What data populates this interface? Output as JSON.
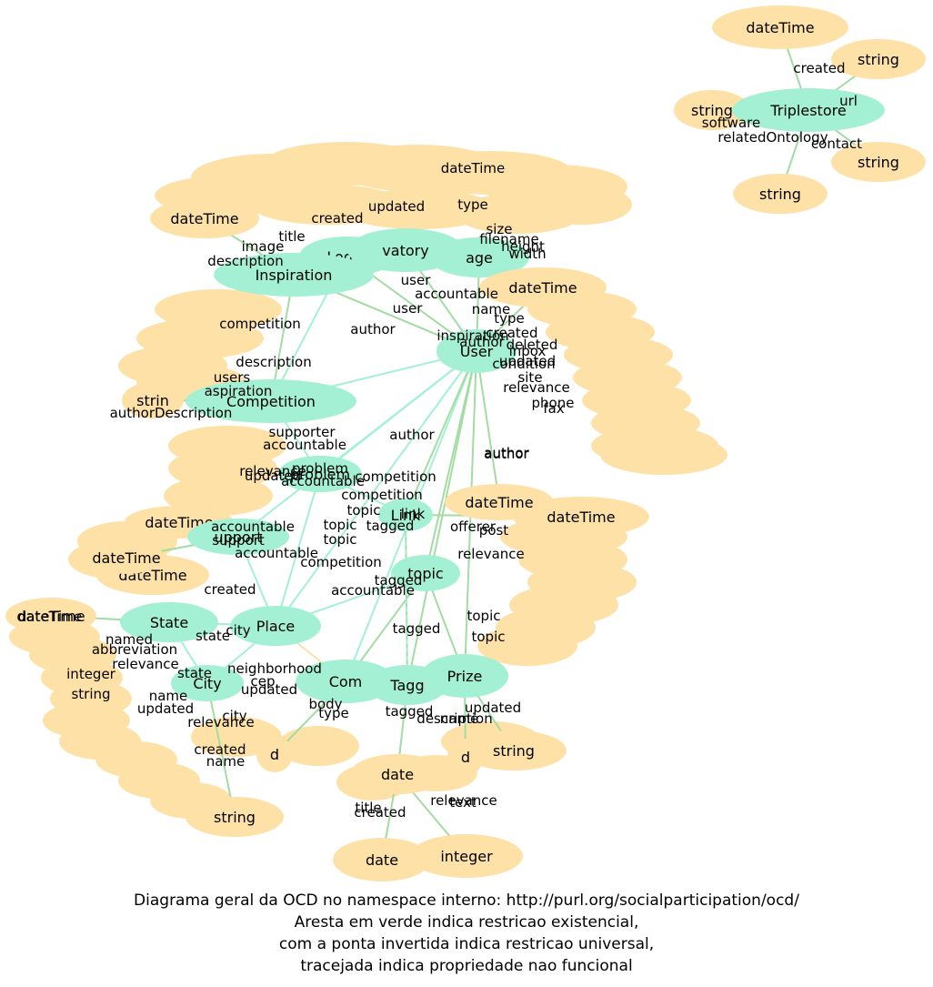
{
  "colors": {
    "class_node": "#a3f0d4",
    "literal_node": "#fde1a7",
    "edge": "#a3dca3",
    "edge_teal": "#a3f0d4",
    "edge_orange": "#fde1a7"
  },
  "diagram": {
    "nodes": [
      {
        "id": "dt_ts",
        "label": "dateTime",
        "kind": "literal"
      },
      {
        "id": "str_ts1",
        "label": "string",
        "kind": "literal"
      },
      {
        "id": "str_ts2",
        "label": "string",
        "kind": "literal"
      },
      {
        "id": "str_ts3",
        "label": "string",
        "kind": "literal"
      },
      {
        "id": "str_ts4",
        "label": "string",
        "kind": "literal"
      },
      {
        "id": "triplestore",
        "label": "Triplestore",
        "kind": "class"
      },
      {
        "id": "dt_a",
        "label": "dateTime",
        "kind": "literal"
      },
      {
        "id": "login",
        "label": "Login",
        "kind": "class"
      },
      {
        "id": "observatory",
        "label": "vatory",
        "kind": "class"
      },
      {
        "id": "image",
        "label": "age",
        "kind": "class"
      },
      {
        "id": "inspiration",
        "label": "Inspiration",
        "kind": "class"
      },
      {
        "id": "dt_b",
        "label": "dateTime",
        "kind": "literal"
      },
      {
        "id": "user",
        "label": "User",
        "kind": "class"
      },
      {
        "id": "competition",
        "label": "Competition",
        "kind": "class"
      },
      {
        "id": "str_c",
        "label": "strin",
        "kind": "literal"
      },
      {
        "id": "dt_c",
        "label": "dateTime",
        "kind": "literal"
      },
      {
        "id": "dt_d",
        "label": "dateTime",
        "kind": "literal"
      },
      {
        "id": "dt_e",
        "label": "dateTime",
        "kind": "literal"
      },
      {
        "id": "state",
        "label": "State",
        "kind": "class"
      },
      {
        "id": "place",
        "label": "Place",
        "kind": "class"
      },
      {
        "id": "city",
        "label": "City",
        "kind": "class"
      },
      {
        "id": "dt_f",
        "label": "dateTime",
        "kind": "literal"
      },
      {
        "id": "comment",
        "label": "Com",
        "kind": "class"
      },
      {
        "id": "tagging",
        "label": "Tagg",
        "kind": "class"
      },
      {
        "id": "prize",
        "label": "Prize",
        "kind": "class"
      },
      {
        "id": "str_p",
        "label": "string",
        "kind": "literal"
      },
      {
        "id": "dt_g",
        "label": "date",
        "kind": "literal"
      },
      {
        "id": "d_h",
        "label": "d",
        "kind": "literal"
      },
      {
        "id": "d_i",
        "label": "d",
        "kind": "literal"
      },
      {
        "id": "date_j",
        "label": "date",
        "kind": "literal"
      },
      {
        "id": "int_j",
        "label": "integer",
        "kind": "literal"
      },
      {
        "id": "str_bl",
        "label": "string",
        "kind": "literal"
      },
      {
        "id": "dt_k",
        "label": "dateTime",
        "kind": "literal"
      },
      {
        "id": "dt_l",
        "label": "dateTime",
        "kind": "literal"
      },
      {
        "id": "problem",
        "label": "problem",
        "kind": "class"
      },
      {
        "id": "support",
        "label": "upport",
        "kind": "class"
      },
      {
        "id": "link",
        "label": "Link",
        "kind": "class"
      },
      {
        "id": "topic",
        "label": "topic",
        "kind": "class"
      }
    ],
    "edge_labels": [
      "created",
      "url",
      "software",
      "relatedOntology",
      "contact",
      "dateTime",
      "updated",
      "type",
      "title",
      "image",
      "created",
      "description",
      "size",
      "filename",
      "height",
      "width",
      "user",
      "accountable",
      "user",
      "author",
      "competition",
      "inspiration",
      "name",
      "type",
      "created",
      "author",
      "updated",
      "deleted",
      "condition",
      "site",
      "relevance",
      "phone",
      "fax",
      "inbox",
      "description",
      "users",
      "aspiration",
      "authorDescription",
      "supporter",
      "accountable",
      "author",
      "author",
      "competition",
      "relevance",
      "problem",
      "updated",
      "accountable",
      "competition",
      "topic",
      "link",
      "tagged",
      "topic",
      "offerer",
      "post",
      "accountable",
      "support",
      "accountable",
      "topic",
      "competition",
      "tagged",
      "accountable",
      "topic",
      "relevance",
      "created",
      "state",
      "city",
      "abbreviation",
      "relevance",
      "name",
      "updated",
      "cep",
      "neighborhood",
      "updated",
      "city",
      "relevance",
      "created",
      "name",
      "body",
      "type",
      "tagged",
      "description",
      "name",
      "updated",
      "relevance",
      "title",
      "created",
      "text",
      "topic",
      "tagged",
      "state",
      "named",
      "integer",
      "string",
      "dateTime",
      "author"
    ],
    "caption_lines": [
      "Diagrama geral da OCD no namespace interno: http://purl.org/socialparticipation/ocd/",
      "Aresta em verde indica restricao existencial,",
      "com a ponta invertida indica restricao universal,",
      "tracejada indica propriedade nao funcional"
    ]
  }
}
